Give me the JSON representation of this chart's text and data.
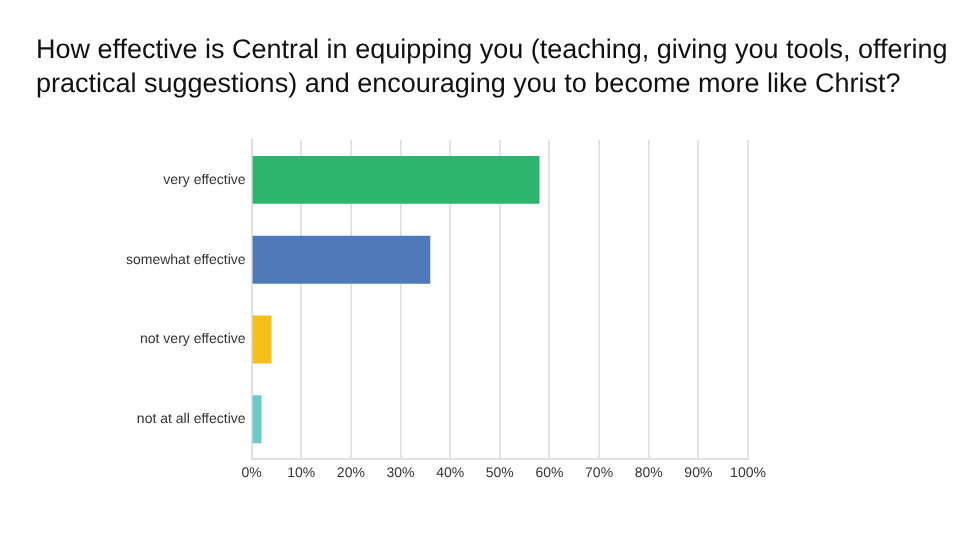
{
  "chart_data": {
    "type": "bar",
    "orientation": "horizontal",
    "title": "How effective is Central in equipping you (teaching, giving you tools, offering practical suggestions) and encouraging you to become more like Christ?",
    "categories": [
      "very effective",
      "somewhat effective",
      "not very effective",
      "not at all effective"
    ],
    "values": [
      58,
      36,
      4,
      2
    ],
    "colors": [
      "#2db56e",
      "#4e79b9",
      "#f6bf1c",
      "#6cc9cc"
    ],
    "xlim": [
      0,
      100
    ],
    "xticks": [
      {
        "value": 0,
        "label": "0%"
      },
      {
        "value": 10,
        "label": "10%"
      },
      {
        "value": 20,
        "label": "20%"
      },
      {
        "value": 30,
        "label": "30%"
      },
      {
        "value": 40,
        "label": "40%"
      },
      {
        "value": 50,
        "label": "50%"
      },
      {
        "value": 60,
        "label": "60%"
      },
      {
        "value": 70,
        "label": "70%"
      },
      {
        "value": 80,
        "label": "80%"
      },
      {
        "value": 90,
        "label": "90%"
      },
      {
        "value": 100,
        "label": "100%"
      }
    ],
    "grid": "x",
    "legend": false
  }
}
